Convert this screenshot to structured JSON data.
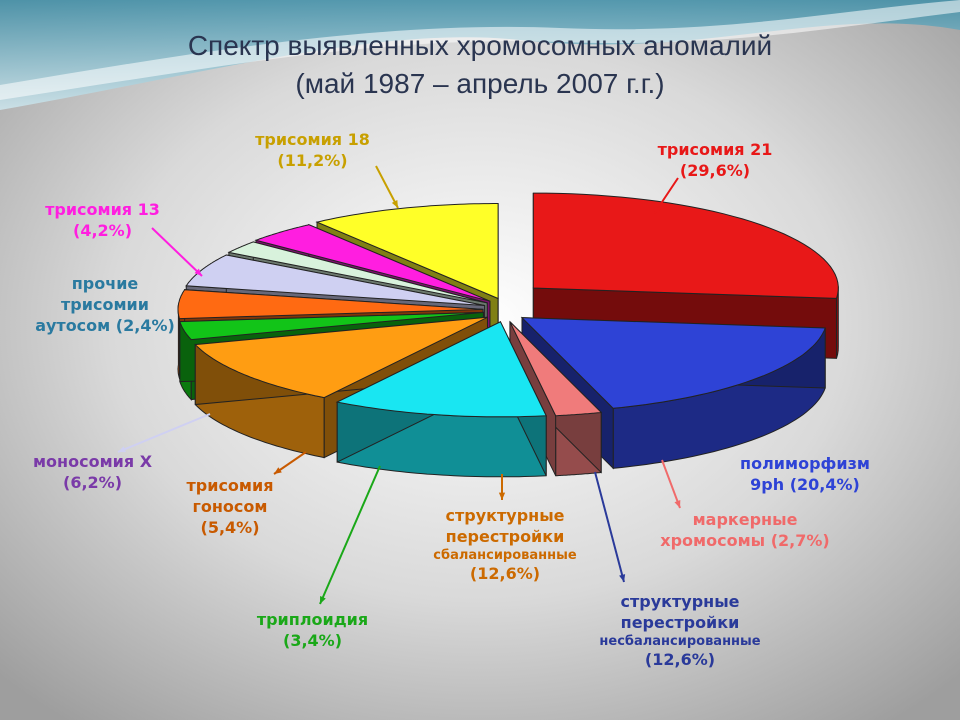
{
  "title_line1": "Спектр выявленных хромосомных аномалий",
  "title_line2": "(май 1987 – апрель 2007 г.г.)",
  "chart_data": {
    "type": "pie",
    "title": "Спектр выявленных хромосомных аномалий (май 1987 – апрель 2007 г.г.)",
    "slices": [
      {
        "name": "трисомия 21",
        "value": 29.6,
        "label": "(29,6%)",
        "color": "#e81818"
      },
      {
        "name": "полиморфизм 9ph",
        "value": 20.4,
        "label": "(20,4%)",
        "color": "#2e43d6"
      },
      {
        "name": "маркерные хромосомы",
        "value": 2.7,
        "label": "(2,7%)",
        "color": "#f07b7b"
      },
      {
        "name": "структурные перестройки несбалансированные",
        "value": 12.6,
        "label": "(12,6%)",
        "color": "#19e6f2"
      },
      {
        "name": "структурные перестройки сбалансированные",
        "value": 12.6,
        "label": "(12,6%)",
        "color": "#ff9d12"
      },
      {
        "name": "триплоидия",
        "value": 3.4,
        "label": "(3,4%)",
        "color": "#12c418"
      },
      {
        "name": "трисомия гоносом",
        "value": 5.4,
        "label": "(5,4%)",
        "color": "#ff6a12"
      },
      {
        "name": "моносомия X",
        "value": 6.2,
        "label": "(6,2%)",
        "color": "#cfd0f2"
      },
      {
        "name": "прочие трисомии аутосом",
        "value": 2.4,
        "label": "(2,4%)",
        "color": "#d8f2dc"
      },
      {
        "name": "трисомия 13",
        "value": 4.2,
        "label": "(4,2%)",
        "color": "#ff1ee0"
      },
      {
        "name": "трисомия 18",
        "value": 11.2,
        "label": "(11,2%)",
        "color": "#ffff28"
      }
    ]
  },
  "labels": {
    "t21": {
      "name": "трисомия 21",
      "value": "(29,6%)",
      "color": "#e81818"
    },
    "poly": {
      "name1": "полиморфизм",
      "name2": "9ph (20,4%)",
      "color": "#2e43d6"
    },
    "marker": {
      "name1": "маркерные",
      "name2": "хромосомы (2,7%)",
      "color": "#f06a6a"
    },
    "unbal": {
      "name1": "структурные",
      "name2": "перестройки",
      "name3": "несбалансированные",
      "value": "(12,6%)",
      "color": "#2a3a9a"
    },
    "bal": {
      "name1": "структурные",
      "name2": "перестройки",
      "name3": "сбалансированные",
      "value": "(12,6%)",
      "color": "#cc6a00"
    },
    "trip": {
      "name": "триплоидия",
      "value": "(3,4%)",
      "color": "#1aa818"
    },
    "gonos": {
      "name1": "трисомия",
      "name2": "гоносом",
      "value": "(5,4%)",
      "color": "#c85a00"
    },
    "monox": {
      "name": "моносомия X",
      "value": "(6,2%)",
      "color": "#7a3aa8"
    },
    "other": {
      "name1": "прочие",
      "name2": "трисомии",
      "name3": "аутосом (2,4%)",
      "color": "#2a7aa0"
    },
    "t13": {
      "name": "трисомия 13",
      "value": "(4,2%)",
      "color": "#ff1ee0"
    },
    "t18": {
      "name": "трисомия 18",
      "value": "(11,2%)",
      "color": "#c8a000"
    }
  }
}
